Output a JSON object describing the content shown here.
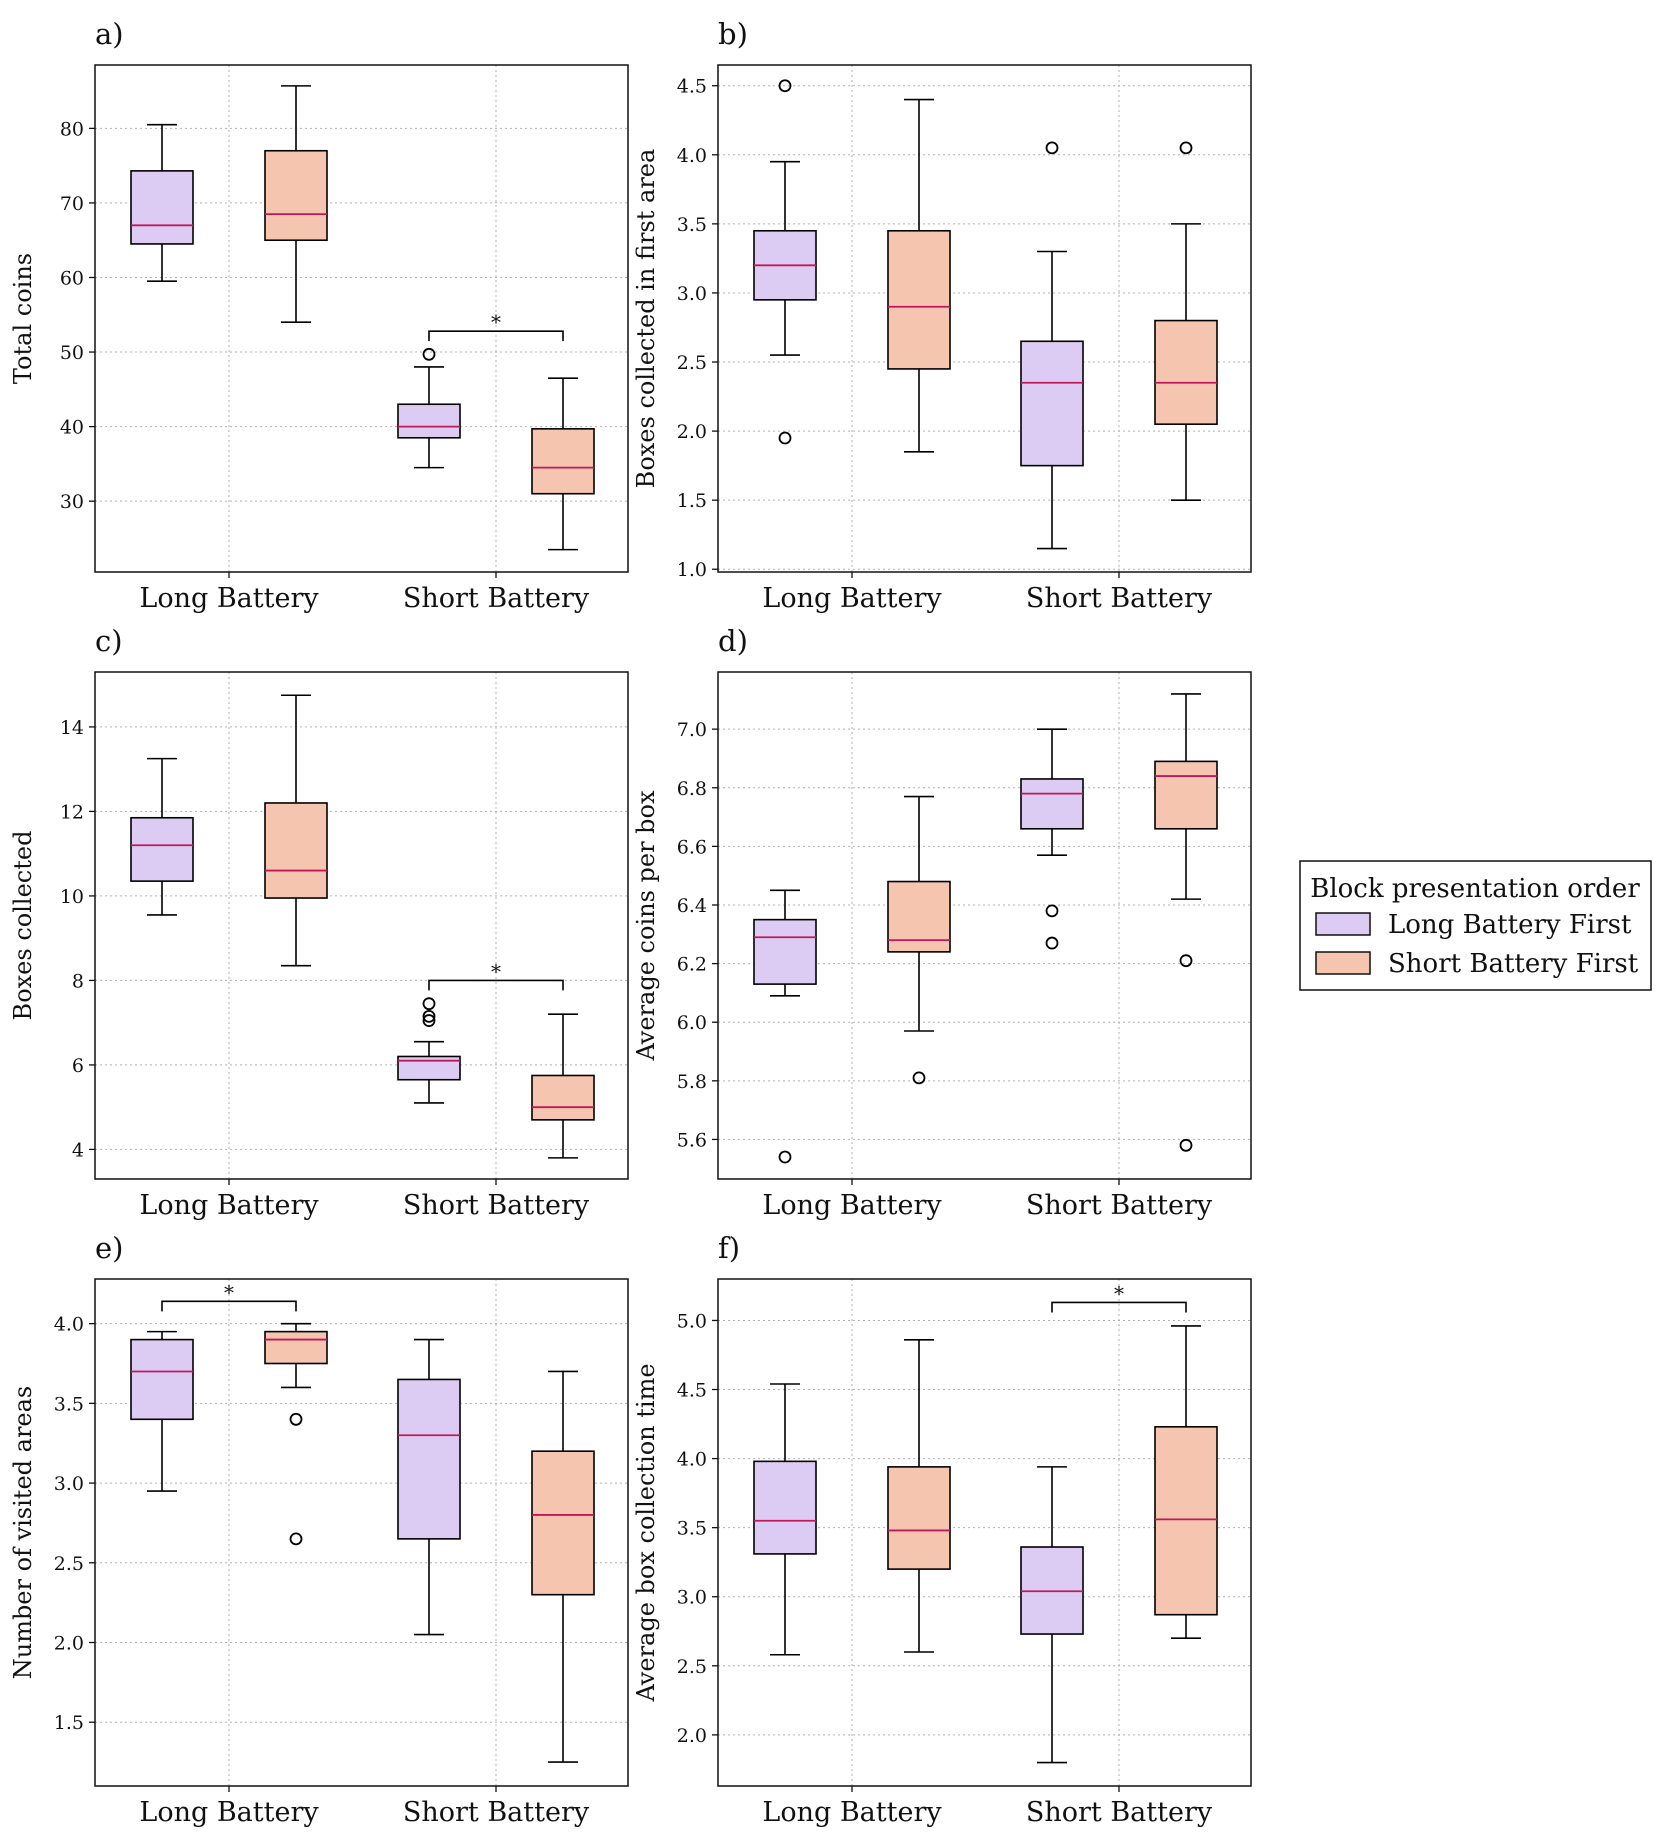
{
  "colors": {
    "long_first_fill": "#dcccf3",
    "short_first_fill": "#f5c5b0",
    "median": "#c2185b",
    "grid": "#b0b0b0",
    "stroke": "#000000"
  },
  "legend": {
    "title": "Block presentation order",
    "entries": [
      {
        "label": "Long Battery First",
        "group": "long_first"
      },
      {
        "label": "Short Battery First",
        "group": "short_first"
      }
    ]
  },
  "chart_data": [
    {
      "panel": "a)",
      "type": "box",
      "ylabel": "Total coins",
      "ylim": [
        20.5,
        88.5
      ],
      "yticks": [
        30,
        40,
        50,
        60,
        70,
        80
      ],
      "tick_format": 0,
      "categories": [
        "Long Battery",
        "Short Battery"
      ],
      "boxes": [
        {
          "category": 0,
          "group": "long_first",
          "whislo": 59.5,
          "q1": 64.5,
          "med": 67.0,
          "q3": 74.3,
          "whishi": 80.5,
          "fliers": []
        },
        {
          "category": 0,
          "group": "short_first",
          "whislo": 54.0,
          "q1": 65.0,
          "med": 68.5,
          "q3": 77.0,
          "whishi": 85.7,
          "fliers": []
        },
        {
          "category": 1,
          "group": "short_first",
          "whislo": 23.5,
          "q1": 31.0,
          "med": 34.5,
          "q3": 39.7,
          "whishi": 46.5,
          "fliers": []
        },
        {
          "category": 1,
          "group": "long_first",
          "whislo": 34.5,
          "q1": 38.5,
          "med": 40.0,
          "q3": 43.0,
          "whishi": 48.0,
          "fliers": [
            49.7
          ]
        }
      ],
      "significance": [
        {
          "category": 1,
          "level": 52.8,
          "label": "*"
        }
      ]
    },
    {
      "panel": "b)",
      "type": "box",
      "ylabel": "Boxes collected in first area",
      "ylim": [
        0.98,
        4.65
      ],
      "yticks": [
        1.0,
        1.5,
        2.0,
        2.5,
        3.0,
        3.5,
        4.0,
        4.5
      ],
      "tick_format": 1,
      "categories": [
        "Long Battery",
        "Short Battery"
      ],
      "boxes": [
        {
          "category": 0,
          "group": "long_first",
          "whislo": 2.55,
          "q1": 2.95,
          "med": 3.2,
          "q3": 3.45,
          "whishi": 3.95,
          "fliers": [
            4.5,
            1.95
          ]
        },
        {
          "category": 0,
          "group": "short_first",
          "whislo": 1.85,
          "q1": 2.45,
          "med": 2.9,
          "q3": 3.45,
          "whishi": 4.4,
          "fliers": []
        },
        {
          "category": 1,
          "group": "short_first",
          "whislo": 1.5,
          "q1": 2.05,
          "med": 2.35,
          "q3": 2.8,
          "whishi": 3.5,
          "fliers": [
            4.05
          ]
        },
        {
          "category": 1,
          "group": "long_first",
          "whislo": 1.15,
          "q1": 1.75,
          "med": 2.35,
          "q3": 2.65,
          "whishi": 3.3,
          "fliers": [
            4.05
          ]
        }
      ],
      "significance": []
    },
    {
      "panel": "c)",
      "type": "box",
      "ylabel": "Boxes collected",
      "ylim": [
        3.3,
        15.3
      ],
      "yticks": [
        4,
        6,
        8,
        10,
        12,
        14
      ],
      "tick_format": 0,
      "categories": [
        "Long Battery",
        "Short Battery"
      ],
      "boxes": [
        {
          "category": 0,
          "group": "long_first",
          "whislo": 9.55,
          "q1": 10.35,
          "med": 11.2,
          "q3": 11.85,
          "whishi": 13.25,
          "fliers": []
        },
        {
          "category": 0,
          "group": "short_first",
          "whislo": 8.35,
          "q1": 9.95,
          "med": 10.6,
          "q3": 12.2,
          "whishi": 14.75,
          "fliers": []
        },
        {
          "category": 1,
          "group": "short_first",
          "whislo": 3.8,
          "q1": 4.7,
          "med": 5.0,
          "q3": 5.75,
          "whishi": 7.2,
          "fliers": []
        },
        {
          "category": 1,
          "group": "long_first",
          "whislo": 5.1,
          "q1": 5.65,
          "med": 6.1,
          "q3": 6.2,
          "whishi": 6.55,
          "fliers": [
            7.05,
            7.15,
            7.45
          ]
        }
      ],
      "significance": [
        {
          "category": 1,
          "level": 8.0,
          "label": "*"
        }
      ]
    },
    {
      "panel": "d)",
      "type": "box",
      "ylabel": "Average coins per box",
      "ylim": [
        5.465,
        7.195
      ],
      "yticks": [
        5.6,
        5.8,
        6.0,
        6.2,
        6.4,
        6.6,
        6.8,
        7.0
      ],
      "tick_format": 1,
      "categories": [
        "Long Battery",
        "Short Battery"
      ],
      "boxes": [
        {
          "category": 0,
          "group": "long_first",
          "whislo": 6.09,
          "q1": 6.13,
          "med": 6.29,
          "q3": 6.35,
          "whishi": 6.45,
          "fliers": [
            5.54
          ]
        },
        {
          "category": 0,
          "group": "short_first",
          "whislo": 5.97,
          "q1": 6.24,
          "med": 6.28,
          "q3": 6.48,
          "whishi": 6.77,
          "fliers": [
            5.81
          ]
        },
        {
          "category": 1,
          "group": "short_first",
          "whislo": 6.42,
          "q1": 6.66,
          "med": 6.84,
          "q3": 6.89,
          "whishi": 7.12,
          "fliers": [
            6.21,
            5.58
          ]
        },
        {
          "category": 1,
          "group": "long_first",
          "whislo": 6.57,
          "q1": 6.66,
          "med": 6.78,
          "q3": 6.83,
          "whishi": 7.0,
          "fliers": [
            6.38,
            6.27
          ]
        }
      ],
      "significance": []
    },
    {
      "panel": "e)",
      "type": "box",
      "ylabel": "Number of visited areas",
      "ylim": [
        1.1,
        4.28
      ],
      "yticks": [
        1.5,
        2.0,
        2.5,
        3.0,
        3.5,
        4.0
      ],
      "tick_format": 1,
      "categories": [
        "Long Battery",
        "Short Battery"
      ],
      "boxes": [
        {
          "category": 0,
          "group": "long_first",
          "whislo": 2.95,
          "q1": 3.4,
          "med": 3.7,
          "q3": 3.9,
          "whishi": 3.95,
          "fliers": []
        },
        {
          "category": 0,
          "group": "short_first",
          "whislo": 3.6,
          "q1": 3.75,
          "med": 3.9,
          "q3": 3.95,
          "whishi": 4.0,
          "fliers": [
            3.4,
            2.65
          ]
        },
        {
          "category": 1,
          "group": "short_first",
          "whislo": 1.25,
          "q1": 2.3,
          "med": 2.8,
          "q3": 3.2,
          "whishi": 3.7,
          "fliers": []
        },
        {
          "category": 1,
          "group": "long_first",
          "whislo": 2.05,
          "q1": 2.65,
          "med": 3.3,
          "q3": 3.65,
          "whishi": 3.9,
          "fliers": []
        }
      ],
      "significance": [
        {
          "category": 0,
          "level": 4.14,
          "label": "*"
        }
      ]
    },
    {
      "panel": "f)",
      "type": "box",
      "ylabel": "Average box collection time",
      "ylim": [
        1.63,
        5.3
      ],
      "yticks": [
        2.0,
        2.5,
        3.0,
        3.5,
        4.0,
        4.5,
        5.0
      ],
      "tick_format": 1,
      "categories": [
        "Long Battery",
        "Short Battery"
      ],
      "boxes": [
        {
          "category": 0,
          "group": "long_first",
          "whislo": 2.58,
          "q1": 3.31,
          "med": 3.55,
          "q3": 3.98,
          "whishi": 4.54,
          "fliers": []
        },
        {
          "category": 0,
          "group": "short_first",
          "whislo": 2.6,
          "q1": 3.2,
          "med": 3.48,
          "q3": 3.94,
          "whishi": 4.86,
          "fliers": []
        },
        {
          "category": 1,
          "group": "short_first",
          "whislo": 2.7,
          "q1": 2.87,
          "med": 3.56,
          "q3": 4.23,
          "whishi": 4.96,
          "fliers": []
        },
        {
          "category": 1,
          "group": "long_first",
          "whislo": 1.8,
          "q1": 2.73,
          "med": 3.04,
          "q3": 3.36,
          "whishi": 3.94,
          "fliers": []
        }
      ],
      "significance": [
        {
          "category": 1,
          "level": 5.13,
          "label": "*"
        }
      ]
    }
  ]
}
